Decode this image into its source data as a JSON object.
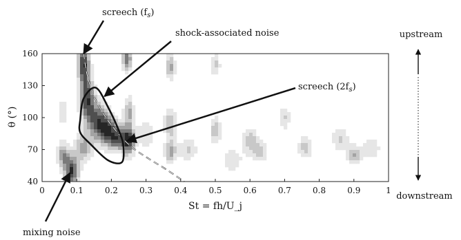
{
  "chart_data": {
    "type": "heatmap",
    "title": "",
    "xlabel": "St = fh/U_j",
    "ylabel": "θ (°)",
    "xlim": [
      0,
      1
    ],
    "ylim": [
      40,
      160
    ],
    "x_ticks": [
      "0",
      "0.1",
      "0.2",
      "0.3",
      "0.4",
      "0.5",
      "0.6",
      "0.7",
      "0.8",
      "0.9",
      "1"
    ],
    "y_ticks": [
      "40",
      "70",
      "100",
      "130",
      "160"
    ],
    "x_tick_values": [
      0,
      0.1,
      0.2,
      0.3,
      0.4,
      0.5,
      0.6,
      0.7,
      0.8,
      0.9,
      1.0
    ],
    "y_tick_values": [
      40,
      70,
      100,
      130,
      160
    ],
    "grid": false,
    "colormap": [
      "#ffffff",
      "#e6e6e6",
      "#c8c8c8",
      "#a3a3a3",
      "#7a7a7a",
      "#4f4f4f",
      "#262626"
    ],
    "blobs": [
      {
        "x": 0.12,
        "y": 150,
        "sx": 0.012,
        "sy": 12,
        "a": 1.0
      },
      {
        "x": 0.13,
        "y": 118,
        "sx": 0.015,
        "sy": 14,
        "a": 0.95
      },
      {
        "x": 0.16,
        "y": 97,
        "sx": 0.02,
        "sy": 12,
        "a": 0.8
      },
      {
        "x": 0.19,
        "y": 88,
        "sx": 0.02,
        "sy": 10,
        "a": 0.75
      },
      {
        "x": 0.22,
        "y": 80,
        "sx": 0.02,
        "sy": 8,
        "a": 0.75
      },
      {
        "x": 0.085,
        "y": 50,
        "sx": 0.014,
        "sy": 10,
        "a": 1.0
      },
      {
        "x": 0.06,
        "y": 65,
        "sx": 0.012,
        "sy": 8,
        "a": 0.65
      },
      {
        "x": 0.12,
        "y": 72,
        "sx": 0.018,
        "sy": 10,
        "a": 0.55
      },
      {
        "x": 0.245,
        "y": 155,
        "sx": 0.01,
        "sy": 8,
        "a": 0.8
      },
      {
        "x": 0.25,
        "y": 78,
        "sx": 0.012,
        "sy": 9,
        "a": 0.9
      },
      {
        "x": 0.25,
        "y": 105,
        "sx": 0.01,
        "sy": 10,
        "a": 0.55
      },
      {
        "x": 0.37,
        "y": 148,
        "sx": 0.01,
        "sy": 8,
        "a": 0.6
      },
      {
        "x": 0.37,
        "y": 95,
        "sx": 0.012,
        "sy": 10,
        "a": 0.5
      },
      {
        "x": 0.37,
        "y": 68,
        "sx": 0.012,
        "sy": 8,
        "a": 0.55
      },
      {
        "x": 0.5,
        "y": 150,
        "sx": 0.01,
        "sy": 7,
        "a": 0.4
      },
      {
        "x": 0.5,
        "y": 88,
        "sx": 0.012,
        "sy": 9,
        "a": 0.45
      },
      {
        "x": 0.6,
        "y": 78,
        "sx": 0.015,
        "sy": 9,
        "a": 0.45
      },
      {
        "x": 0.63,
        "y": 68,
        "sx": 0.015,
        "sy": 7,
        "a": 0.4
      },
      {
        "x": 0.7,
        "y": 100,
        "sx": 0.012,
        "sy": 8,
        "a": 0.35
      },
      {
        "x": 0.76,
        "y": 72,
        "sx": 0.015,
        "sy": 7,
        "a": 0.45
      },
      {
        "x": 0.86,
        "y": 80,
        "sx": 0.018,
        "sy": 8,
        "a": 0.35
      },
      {
        "x": 0.9,
        "y": 65,
        "sx": 0.015,
        "sy": 6,
        "a": 0.5
      },
      {
        "x": 0.95,
        "y": 72,
        "sx": 0.02,
        "sy": 8,
        "a": 0.3
      },
      {
        "x": 0.06,
        "y": 105,
        "sx": 0.01,
        "sy": 10,
        "a": 0.3
      },
      {
        "x": 0.3,
        "y": 85,
        "sx": 0.02,
        "sy": 10,
        "a": 0.3
      },
      {
        "x": 0.42,
        "y": 70,
        "sx": 0.02,
        "sy": 8,
        "a": 0.35
      },
      {
        "x": 0.55,
        "y": 60,
        "sx": 0.02,
        "sy": 8,
        "a": 0.3
      }
    ],
    "dashed_curve": [
      [
        0.12,
        160
      ],
      [
        0.13,
        140
      ],
      [
        0.15,
        120
      ],
      [
        0.18,
        102
      ],
      [
        0.22,
        85
      ],
      [
        0.26,
        72
      ],
      [
        0.31,
        61
      ],
      [
        0.36,
        51
      ],
      [
        0.41,
        40
      ]
    ],
    "noise_contour": [
      [
        0.11,
        98
      ],
      [
        0.12,
        118
      ],
      [
        0.155,
        128
      ],
      [
        0.19,
        110
      ],
      [
        0.225,
        85
      ],
      [
        0.235,
        72
      ],
      [
        0.23,
        58
      ],
      [
        0.19,
        60
      ],
      [
        0.14,
        75
      ],
      [
        0.11,
        86
      ]
    ],
    "annotations": [
      {
        "id": "screech-fs",
        "text": "screech (f",
        "sub": "s",
        "suffix": ")",
        "target": [
          0.12,
          160
        ],
        "label_side": "above"
      },
      {
        "id": "shock-noise",
        "text": "shock-associated noise",
        "target": [
          0.18,
          120
        ],
        "label_side": "above"
      },
      {
        "id": "screech-2fs",
        "text": "screech (2f",
        "sub": "s",
        "suffix": ")",
        "target": [
          0.245,
          78
        ],
        "label_side": "right"
      },
      {
        "id": "mixing-noise",
        "text": "mixing noise",
        "target": [
          0.08,
          48
        ],
        "label_side": "below"
      }
    ],
    "direction_labels": {
      "top": "upstream",
      "bottom": "downstream"
    }
  }
}
